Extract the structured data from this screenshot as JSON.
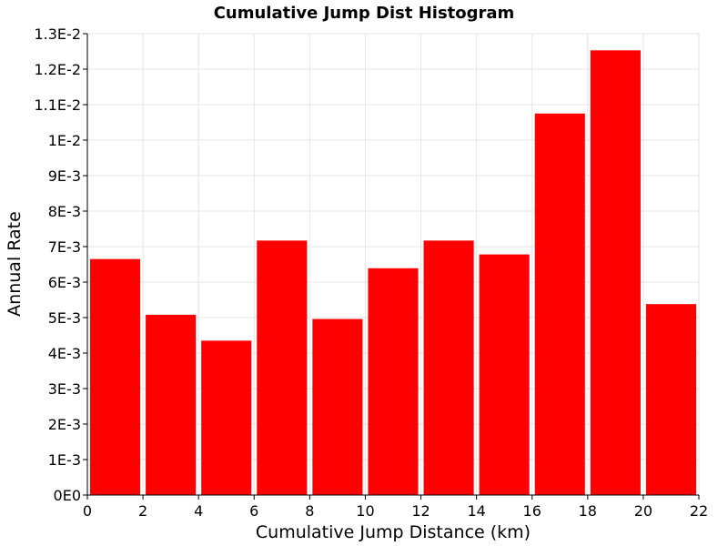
{
  "chart_data": {
    "type": "bar",
    "title": "Cumulative Jump Dist Histogram",
    "xlabel": "Cumulative Jump Distance (km)",
    "ylabel": "Annual Rate",
    "xlim": [
      0,
      22
    ],
    "ylim": [
      0,
      0.013
    ],
    "grid": true,
    "bar_color": "#ff0000",
    "x_ticks": [
      0,
      2,
      4,
      6,
      8,
      10,
      12,
      14,
      16,
      18,
      20,
      22
    ],
    "x_tick_labels": [
      "0",
      "2",
      "4",
      "6",
      "8",
      "10",
      "12",
      "14",
      "16",
      "18",
      "20",
      "22"
    ],
    "y_ticks": [
      0,
      0.001,
      0.002,
      0.003,
      0.004,
      0.005,
      0.006,
      0.007,
      0.008,
      0.009,
      0.01,
      0.011,
      0.012,
      0.013
    ],
    "y_tick_labels": [
      "0E0",
      "1E-3",
      "2E-3",
      "3E-3",
      "4E-3",
      "5E-3",
      "6E-3",
      "7E-3",
      "8E-3",
      "9E-3",
      "1E-2",
      "1.1E-2",
      "1.2E-2",
      "1.3E-2"
    ],
    "bins": [
      {
        "x0": 0,
        "x1": 2,
        "value": 0.00665
      },
      {
        "x0": 2,
        "x1": 4,
        "value": 0.00508
      },
      {
        "x0": 4,
        "x1": 6,
        "value": 0.00435
      },
      {
        "x0": 6,
        "x1": 8,
        "value": 0.00717
      },
      {
        "x0": 8,
        "x1": 10,
        "value": 0.00496
      },
      {
        "x0": 10,
        "x1": 12,
        "value": 0.00639
      },
      {
        "x0": 12,
        "x1": 14,
        "value": 0.00717
      },
      {
        "x0": 14,
        "x1": 16,
        "value": 0.00678
      },
      {
        "x0": 16,
        "x1": 18,
        "value": 0.01075
      },
      {
        "x0": 18,
        "x1": 20,
        "value": 0.01253
      },
      {
        "x0": 20,
        "x1": 22,
        "value": 0.00538
      }
    ]
  }
}
